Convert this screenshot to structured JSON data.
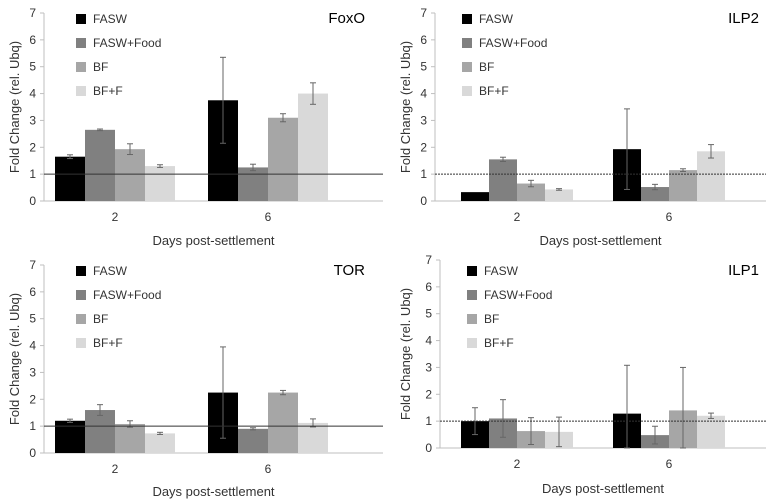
{
  "chart_data": [
    {
      "type": "bar",
      "title": "FoxO",
      "xlabel": "Days post-settlement",
      "ylabel": "Fold Change (rel. Ubq)",
      "ylim": [
        0,
        7
      ],
      "yticks": [
        0,
        1,
        2,
        3,
        4,
        5,
        6,
        7
      ],
      "categories": [
        "2",
        "6"
      ],
      "reference_line": 1,
      "legend_position": "top-left",
      "series": [
        {
          "name": "FASW",
          "color": "#000000",
          "values": [
            1.65,
            3.75
          ],
          "errors": [
            0.07,
            1.6
          ]
        },
        {
          "name": "FASW+Food",
          "color": "#808080",
          "values": [
            2.65,
            1.25
          ],
          "errors": [
            0.03,
            0.12
          ]
        },
        {
          "name": "BF",
          "color": "#a6a6a6",
          "values": [
            1.93,
            3.1
          ],
          "errors": [
            0.2,
            0.15
          ]
        },
        {
          "name": "BF+F",
          "color": "#d9d9d9",
          "values": [
            1.3,
            4.0
          ],
          "errors": [
            0.05,
            0.4
          ]
        }
      ]
    },
    {
      "type": "bar",
      "title": "ILP2",
      "xlabel": "Days post-settlement",
      "ylabel": "Fold Change (rel. Ubq)",
      "ylim": [
        0,
        7
      ],
      "yticks": [
        0,
        1,
        2,
        3,
        4,
        5,
        6,
        7
      ],
      "categories": [
        "2",
        "6"
      ],
      "reference_line": 1,
      "legend_position": "top-left",
      "series": [
        {
          "name": "FASW",
          "color": "#000000",
          "values": [
            0.33,
            1.93
          ],
          "errors": [
            0.0,
            1.5
          ]
        },
        {
          "name": "FASW+Food",
          "color": "#808080",
          "values": [
            1.55,
            0.52
          ],
          "errors": [
            0.08,
            0.1
          ]
        },
        {
          "name": "BF",
          "color": "#a6a6a6",
          "values": [
            0.65,
            1.15
          ],
          "errors": [
            0.12,
            0.05
          ]
        },
        {
          "name": "BF+F",
          "color": "#d9d9d9",
          "values": [
            0.43,
            1.85
          ],
          "errors": [
            0.03,
            0.25
          ]
        }
      ]
    },
    {
      "type": "bar",
      "title": "TOR",
      "xlabel": "Days post-settlement",
      "ylabel": "Fold Change (rel. Ubq)",
      "ylim": [
        0,
        7
      ],
      "yticks": [
        0,
        1,
        2,
        3,
        4,
        5,
        6,
        7
      ],
      "categories": [
        "2",
        "6"
      ],
      "reference_line": 1,
      "legend_position": "top-left",
      "series": [
        {
          "name": "FASW",
          "color": "#000000",
          "values": [
            1.2,
            2.25
          ],
          "errors": [
            0.06,
            1.7
          ]
        },
        {
          "name": "FASW+Food",
          "color": "#808080",
          "values": [
            1.6,
            0.9
          ],
          "errors": [
            0.2,
            0.04
          ]
        },
        {
          "name": "BF",
          "color": "#a6a6a6",
          "values": [
            1.08,
            2.25
          ],
          "errors": [
            0.12,
            0.08
          ]
        },
        {
          "name": "BF+F",
          "color": "#d9d9d9",
          "values": [
            0.73,
            1.12
          ],
          "errors": [
            0.04,
            0.15
          ]
        }
      ]
    },
    {
      "type": "bar",
      "title": "ILP1",
      "xlabel": "Days post-settlement",
      "ylabel": "Fold Change (rel. Ubq)",
      "ylim": [
        0,
        7
      ],
      "yticks": [
        0,
        1,
        2,
        3,
        4,
        5,
        6,
        7
      ],
      "categories": [
        "2",
        "6"
      ],
      "reference_line": 1,
      "legend_position": "top-left",
      "series": [
        {
          "name": "FASW",
          "color": "#000000",
          "values": [
            1.0,
            1.28
          ],
          "errors": [
            0.5,
            1.8
          ]
        },
        {
          "name": "FASW+Food",
          "color": "#808080",
          "values": [
            1.1,
            0.48
          ],
          "errors": [
            0.7,
            0.33
          ]
        },
        {
          "name": "BF",
          "color": "#a6a6a6",
          "values": [
            0.63,
            1.4
          ],
          "errors": [
            0.5,
            1.6
          ]
        },
        {
          "name": "BF+F",
          "color": "#d9d9d9",
          "values": [
            0.6,
            1.2
          ],
          "errors": [
            0.55,
            0.1
          ]
        }
      ]
    }
  ]
}
